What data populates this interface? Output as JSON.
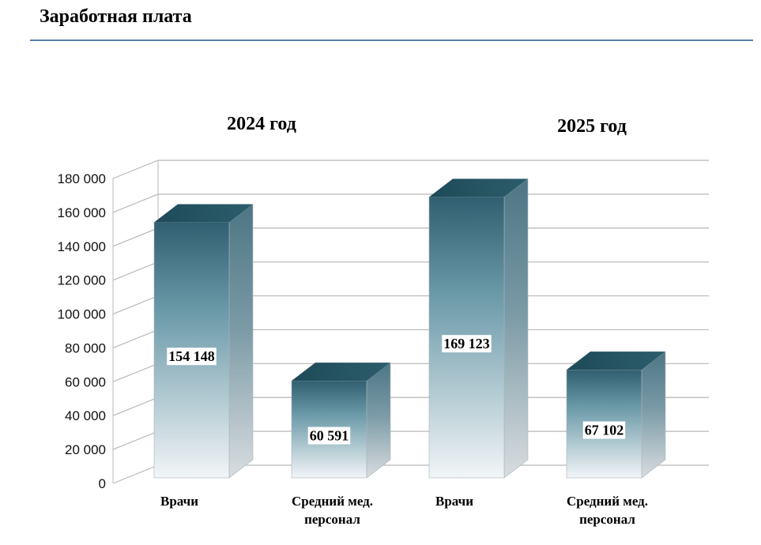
{
  "header": {
    "title": "Заработная плата"
  },
  "chart_data": {
    "type": "bar",
    "title": "",
    "ylim": [
      0,
      180000
    ],
    "ticks": [
      "0",
      "20 000",
      "40 000",
      "60 000",
      "80 000",
      "100 000",
      "120 000",
      "140 000",
      "160 000",
      "180 000"
    ],
    "groups": [
      "2024 год",
      "2025 год"
    ],
    "categories": [
      "Врачи",
      "Средний мед. персонал",
      "Врачи",
      "Средний мед. персонал"
    ],
    "category_group": [
      0,
      0,
      1,
      1
    ],
    "values": [
      154148,
      60591,
      169123,
      67102
    ],
    "value_labels": [
      "154 148",
      "60 591",
      "169 123",
      "67 102"
    ],
    "grid": true,
    "colors": {
      "bar_top": "#2f5f70",
      "bar_mid": "#6b9aa9",
      "bar_bottom": "#eef3f6",
      "grid": "#b8b8b8"
    }
  }
}
